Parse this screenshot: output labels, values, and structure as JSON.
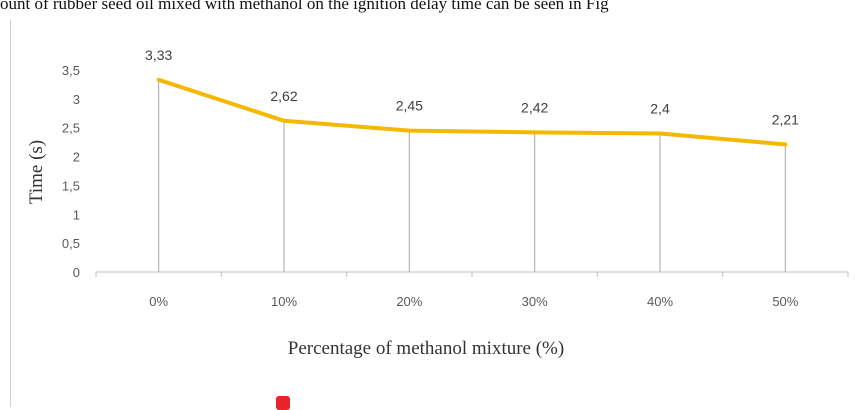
{
  "page": {
    "caption_text": "ount of rubber seed oil mixed with methanol on the ignition delay time can be seen in Fig"
  },
  "colors": {
    "line": "#f5b800",
    "drop_line": "#a6a6a6",
    "axis": "#bfbfbf",
    "marker": "#e8232a"
  },
  "chart_data": {
    "type": "line",
    "categories": [
      "0%",
      "10%",
      "20%",
      "30%",
      "40%",
      "50%"
    ],
    "values": [
      3.33,
      2.62,
      2.45,
      2.42,
      2.4,
      2.21
    ],
    "data_labels": [
      "3,33",
      "2,62",
      "2,45",
      "2,42",
      "2,4",
      "2,21"
    ],
    "title": "",
    "xlabel": "Percentage of methanol mixture (%)",
    "ylabel": "Time (s)",
    "ylim": [
      0,
      3.5
    ],
    "yticks": [
      0,
      0.5,
      1,
      1.5,
      2,
      2.5,
      3,
      3.5
    ],
    "ytick_labels": [
      "0",
      "0,5",
      "1",
      "1,5",
      "2",
      "2,5",
      "3",
      "3,5"
    ],
    "grid": false,
    "drop_lines": true,
    "legend": "none"
  }
}
